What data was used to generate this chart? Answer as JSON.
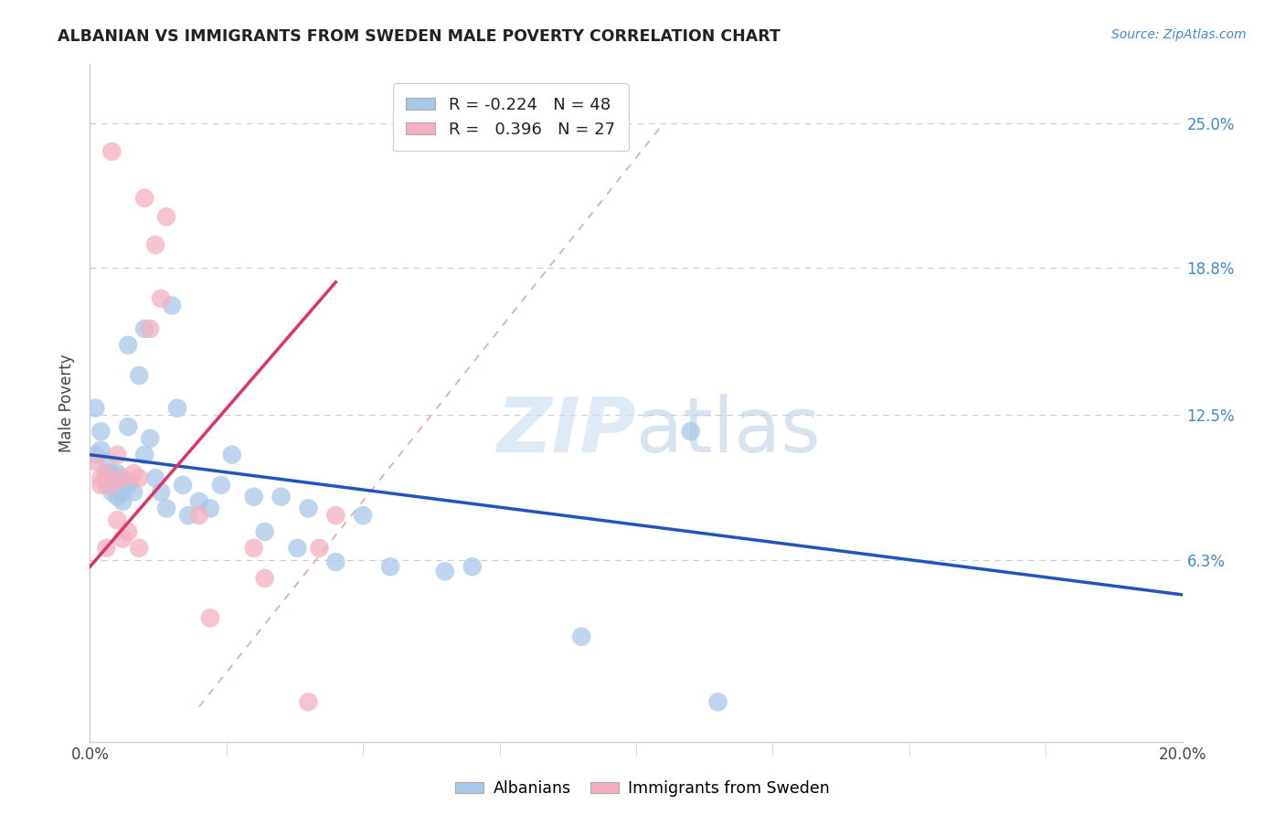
{
  "title": "ALBANIAN VS IMMIGRANTS FROM SWEDEN MALE POVERTY CORRELATION CHART",
  "source": "Source: ZipAtlas.com",
  "ylabel": "Male Poverty",
  "xlim": [
    0.0,
    0.2
  ],
  "ylim": [
    -0.015,
    0.275
  ],
  "ytick_values": [
    0.063,
    0.125,
    0.188,
    0.25
  ],
  "ytick_labels": [
    "6.3%",
    "12.5%",
    "18.8%",
    "25.0%"
  ],
  "grid_color": "#cccccc",
  "background_color": "#ffffff",
  "albanians_color": "#a8c8e8",
  "immigrants_color": "#f4b0c0",
  "albanian_R": -0.224,
  "albanian_N": 48,
  "immigrant_R": 0.396,
  "immigrant_N": 27,
  "albanian_line_color": "#2255bb",
  "immigrant_line_color": "#dd3366",
  "diagonal_line_color": "#ddaaaa",
  "watermark_zip": "ZIP",
  "watermark_atlas": "atlas",
  "legend_albanians": "Albanians",
  "legend_immigrants": "Immigrants from Sweden",
  "albanians_x": [
    0.001,
    0.001,
    0.002,
    0.002,
    0.003,
    0.003,
    0.003,
    0.003,
    0.004,
    0.004,
    0.004,
    0.005,
    0.005,
    0.005,
    0.006,
    0.006,
    0.007,
    0.007,
    0.007,
    0.008,
    0.009,
    0.01,
    0.01,
    0.011,
    0.012,
    0.013,
    0.014,
    0.015,
    0.016,
    0.017,
    0.018,
    0.02,
    0.022,
    0.024,
    0.026,
    0.03,
    0.032,
    0.035,
    0.038,
    0.04,
    0.045,
    0.05,
    0.055,
    0.065,
    0.07,
    0.09,
    0.11,
    0.115
  ],
  "albanians_y": [
    0.128,
    0.108,
    0.118,
    0.11,
    0.105,
    0.1,
    0.095,
    0.098,
    0.092,
    0.095,
    0.1,
    0.098,
    0.09,
    0.1,
    0.088,
    0.092,
    0.155,
    0.12,
    0.095,
    0.092,
    0.142,
    0.162,
    0.108,
    0.115,
    0.098,
    0.092,
    0.085,
    0.172,
    0.128,
    0.095,
    0.082,
    0.088,
    0.085,
    0.095,
    0.108,
    0.09,
    0.075,
    0.09,
    0.068,
    0.085,
    0.062,
    0.082,
    0.06,
    0.058,
    0.06,
    0.03,
    0.118,
    0.002
  ],
  "immigrants_x": [
    0.001,
    0.002,
    0.002,
    0.003,
    0.003,
    0.004,
    0.004,
    0.005,
    0.005,
    0.006,
    0.006,
    0.007,
    0.008,
    0.009,
    0.009,
    0.01,
    0.011,
    0.012,
    0.013,
    0.014,
    0.02,
    0.022,
    0.03,
    0.032,
    0.04,
    0.042,
    0.045
  ],
  "immigrants_y": [
    0.105,
    0.098,
    0.095,
    0.1,
    0.068,
    0.095,
    0.238,
    0.108,
    0.08,
    0.098,
    0.072,
    0.075,
    0.1,
    0.098,
    0.068,
    0.218,
    0.162,
    0.198,
    0.175,
    0.21,
    0.082,
    0.038,
    0.068,
    0.055,
    0.002,
    0.068,
    0.082
  ],
  "alb_line_x": [
    0.0,
    0.2
  ],
  "alb_line_y": [
    0.108,
    0.048
  ],
  "imm_line_x": [
    0.0,
    0.045
  ],
  "imm_line_y": [
    0.06,
    0.182
  ]
}
